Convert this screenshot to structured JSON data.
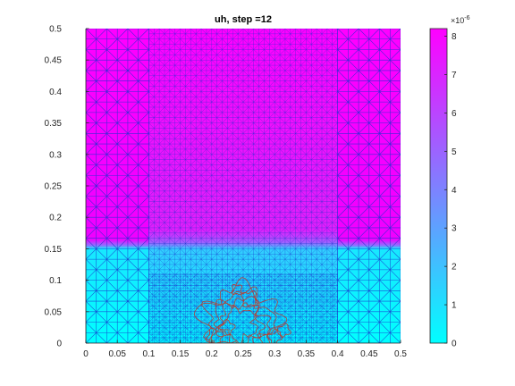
{
  "chart_data": {
    "type": "heatmap",
    "title": "uh, step =12",
    "xlabel": "",
    "ylabel": "",
    "xlim": [
      0,
      0.5
    ],
    "ylim": [
      0,
      0.5
    ],
    "xticks": [
      "0",
      "0.05",
      "0.1",
      "0.15",
      "0.2",
      "0.25",
      "0.3",
      "0.35",
      "0.4",
      "0.45",
      "0.5"
    ],
    "yticks": [
      "0",
      "0.05",
      "0.1",
      "0.15",
      "0.2",
      "0.25",
      "0.3",
      "0.35",
      "0.4",
      "0.45",
      "0.5"
    ],
    "colorbar": {
      "clim": [
        0,
        8.2
      ],
      "ticks": [
        "0",
        "1",
        "2",
        "3",
        "4",
        "5",
        "6",
        "7",
        "8"
      ],
      "exponent_label": "×10",
      "exponent_power": "-6",
      "colormap": "cool",
      "color_min": "#00ffff",
      "color_max": "#ff00ff"
    },
    "field": {
      "lower_region_ymax": 0.155,
      "lower_region_value": 0.2,
      "upper_region_value": 8.1,
      "transition_band": [
        0.15,
        0.17
      ],
      "center_value_near_interface": 3.0
    },
    "mesh": {
      "color": "#1a33cc",
      "coarse_columns": [
        [
          0.0,
          0.1
        ],
        [
          0.4,
          0.5
        ]
      ],
      "fine_column": [
        0.1,
        0.4
      ],
      "refined_region": [
        0.1,
        0.4,
        0.0,
        0.11
      ]
    },
    "contour": {
      "color": "#c0392b",
      "center": [
        0.245,
        0.03
      ],
      "radius": 0.055
    }
  }
}
